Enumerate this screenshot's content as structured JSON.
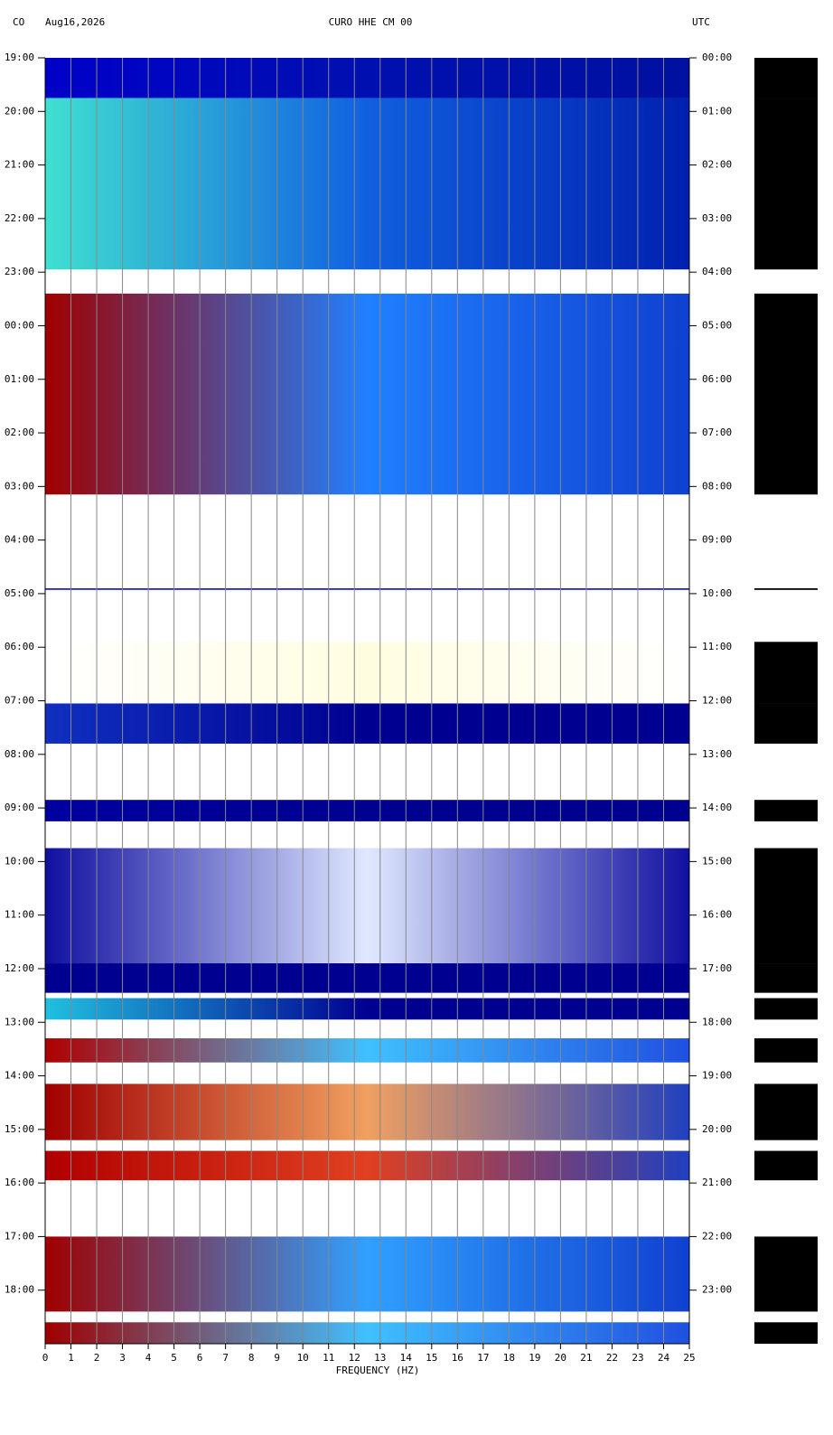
{
  "chart_data": {
    "type": "spectrogram",
    "network": "CO",
    "date": "Aug16,2026",
    "title": "CURO HHE CM 00",
    "timezone": "UTC",
    "x_label": "FREQUENCY (HZ)",
    "xlim": [
      0,
      25
    ],
    "xticks": [
      0,
      1,
      2,
      3,
      4,
      5,
      6,
      7,
      8,
      9,
      10,
      11,
      12,
      13,
      14,
      15,
      16,
      17,
      18,
      19,
      20,
      21,
      22,
      23,
      24,
      25
    ],
    "ylim": [
      0,
      24
    ],
    "yticks": [
      {
        "value": 0,
        "label": "19:00"
      },
      {
        "value": 1,
        "label": "20:00"
      },
      {
        "value": 2,
        "label": "21:00"
      },
      {
        "value": 3,
        "label": "22:00"
      },
      {
        "value": 4,
        "label": "23:00"
      },
      {
        "value": 5,
        "label": "00:00"
      },
      {
        "value": 6,
        "label": "01:00"
      },
      {
        "value": 7,
        "label": "02:00"
      },
      {
        "value": 8,
        "label": "03:00"
      },
      {
        "value": 9,
        "label": "04:00"
      },
      {
        "value": 10,
        "label": "05:00"
      },
      {
        "value": 11,
        "label": "06:00"
      },
      {
        "value": 12,
        "label": "07:00"
      },
      {
        "value": 13,
        "label": "08:00"
      },
      {
        "value": 14,
        "label": "09:00"
      },
      {
        "value": 15,
        "label": "10:00"
      },
      {
        "value": 16,
        "label": "11:00"
      },
      {
        "value": 17,
        "label": "12:00"
      },
      {
        "value": 18,
        "label": "13:00"
      },
      {
        "value": 19,
        "label": "14:00"
      },
      {
        "value": 20,
        "label": "15:00"
      },
      {
        "value": 21,
        "label": "16:00"
      },
      {
        "value": 22,
        "label": "17:00"
      },
      {
        "value": 23,
        "label": "18:00"
      }
    ],
    "y2ticks": [
      {
        "value": 0,
        "label": "00:00"
      },
      {
        "value": 1,
        "label": "01:00"
      },
      {
        "value": 2,
        "label": "02:00"
      },
      {
        "value": 3,
        "label": "03:00"
      },
      {
        "value": 4,
        "label": "04:00"
      },
      {
        "value": 5,
        "label": "05:00"
      },
      {
        "value": 6,
        "label": "06:00"
      },
      {
        "value": 7,
        "label": "07:00"
      },
      {
        "value": 8,
        "label": "08:00"
      },
      {
        "value": 9,
        "label": "09:00"
      },
      {
        "value": 10,
        "label": "10:00"
      },
      {
        "value": 11,
        "label": "11:00"
      },
      {
        "value": 12,
        "label": "12:00"
      },
      {
        "value": 13,
        "label": "13:00"
      },
      {
        "value": 14,
        "label": "14:00"
      },
      {
        "value": 15,
        "label": "15:00"
      },
      {
        "value": 16,
        "label": "16:00"
      },
      {
        "value": 17,
        "label": "17:00"
      },
      {
        "value": 18,
        "label": "18:00"
      },
      {
        "value": 19,
        "label": "19:00"
      },
      {
        "value": 20,
        "label": "20:00"
      },
      {
        "value": 21,
        "label": "21:00"
      },
      {
        "value": 22,
        "label": "22:00"
      },
      {
        "value": 23,
        "label": "23:00"
      }
    ],
    "grid": true,
    "segments": [
      {
        "start": 0.0,
        "end": 0.75,
        "colors": [
          "#0000c8",
          "#0010b0",
          "#0010a0"
        ]
      },
      {
        "start": 0.75,
        "end": 3.95,
        "colors": [
          "#40e0d0",
          "#1060e0",
          "#0020b0"
        ]
      },
      {
        "start": 4.4,
        "end": 8.15,
        "colors": [
          "#a00000",
          "#2080ff",
          "#1040d0"
        ]
      },
      {
        "start": 9.9,
        "end": 9.93,
        "colors": [
          "#2020c0",
          "#2020c0",
          "#2020c0"
        ]
      },
      {
        "start": 10.9,
        "end": 12.05,
        "colors": [
          "#ffffff",
          "#fffde0",
          "#ffffff"
        ]
      },
      {
        "start": 12.05,
        "end": 12.8,
        "colors": [
          "#1030c0",
          "#000090",
          "#000090"
        ]
      },
      {
        "start": 13.85,
        "end": 14.25,
        "colors": [
          "#0000a0",
          "#000090",
          "#000090"
        ]
      },
      {
        "start": 14.75,
        "end": 16.9,
        "colors": [
          "#1010a0",
          "#e0e8ff",
          "#1010a0"
        ]
      },
      {
        "start": 16.9,
        "end": 17.45,
        "colors": [
          "#000090",
          "#000090",
          "#000090"
        ]
      },
      {
        "start": 17.55,
        "end": 17.95,
        "colors": [
          "#20c0e0",
          "#000090",
          "#000090"
        ]
      },
      {
        "start": 18.3,
        "end": 18.75,
        "colors": [
          "#b00000",
          "#40c0ff",
          "#2050e0"
        ]
      },
      {
        "start": 19.15,
        "end": 20.2,
        "colors": [
          "#a00000",
          "#f0a060",
          "#2040c0"
        ]
      },
      {
        "start": 20.4,
        "end": 20.95,
        "colors": [
          "#b00000",
          "#e04020",
          "#2040c0"
        ]
      },
      {
        "start": 22.0,
        "end": 23.4,
        "colors": [
          "#a00000",
          "#30a0ff",
          "#1040d0"
        ]
      },
      {
        "start": 23.6,
        "end": 24.0,
        "colors": [
          "#a00000",
          "#40c0ff",
          "#2050e0"
        ]
      }
    ]
  }
}
